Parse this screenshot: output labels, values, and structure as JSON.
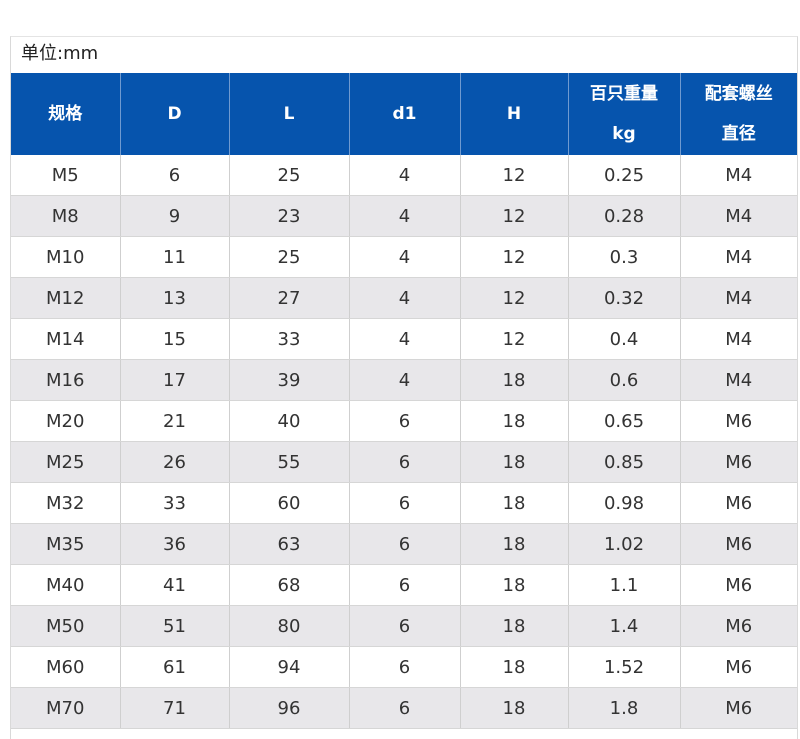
{
  "unit_label": "单位:mm",
  "table": {
    "headers": [
      [
        "规格"
      ],
      [
        "D"
      ],
      [
        "L"
      ],
      [
        "d1"
      ],
      [
        "H"
      ],
      [
        "百只重量",
        "kg"
      ],
      [
        "配套螺丝",
        "直径"
      ]
    ],
    "rows": [
      [
        "M5",
        "6",
        "25",
        "4",
        "12",
        "0.25",
        "M4"
      ],
      [
        "M8",
        "9",
        "23",
        "4",
        "12",
        "0.28",
        "M4"
      ],
      [
        "M10",
        "11",
        "25",
        "4",
        "12",
        "0.3",
        "M4"
      ],
      [
        "M12",
        "13",
        "27",
        "4",
        "12",
        "0.32",
        "M4"
      ],
      [
        "M14",
        "15",
        "33",
        "4",
        "12",
        "0.4",
        "M4"
      ],
      [
        "M16",
        "17",
        "39",
        "4",
        "18",
        "0.6",
        "M4"
      ],
      [
        "M20",
        "21",
        "40",
        "6",
        "18",
        "0.65",
        "M6"
      ],
      [
        "M25",
        "26",
        "55",
        "6",
        "18",
        "0.85",
        "M6"
      ],
      [
        "M32",
        "33",
        "60",
        "6",
        "18",
        "0.98",
        "M6"
      ],
      [
        "M35",
        "36",
        "63",
        "6",
        "18",
        "1.02",
        "M6"
      ],
      [
        "M40",
        "41",
        "68",
        "6",
        "18",
        "1.1",
        "M6"
      ],
      [
        "M50",
        "51",
        "80",
        "6",
        "18",
        "1.4",
        "M6"
      ],
      [
        "M60",
        "61",
        "94",
        "6",
        "18",
        "1.52",
        "M6"
      ],
      [
        "M70",
        "71",
        "96",
        "6",
        "18",
        "1.8",
        "M6"
      ]
    ]
  },
  "colors": {
    "header_bg": "#0654ad",
    "header_text": "#ffffff",
    "stripe_bg": "#e8e7ea",
    "cell_text": "#333333"
  }
}
